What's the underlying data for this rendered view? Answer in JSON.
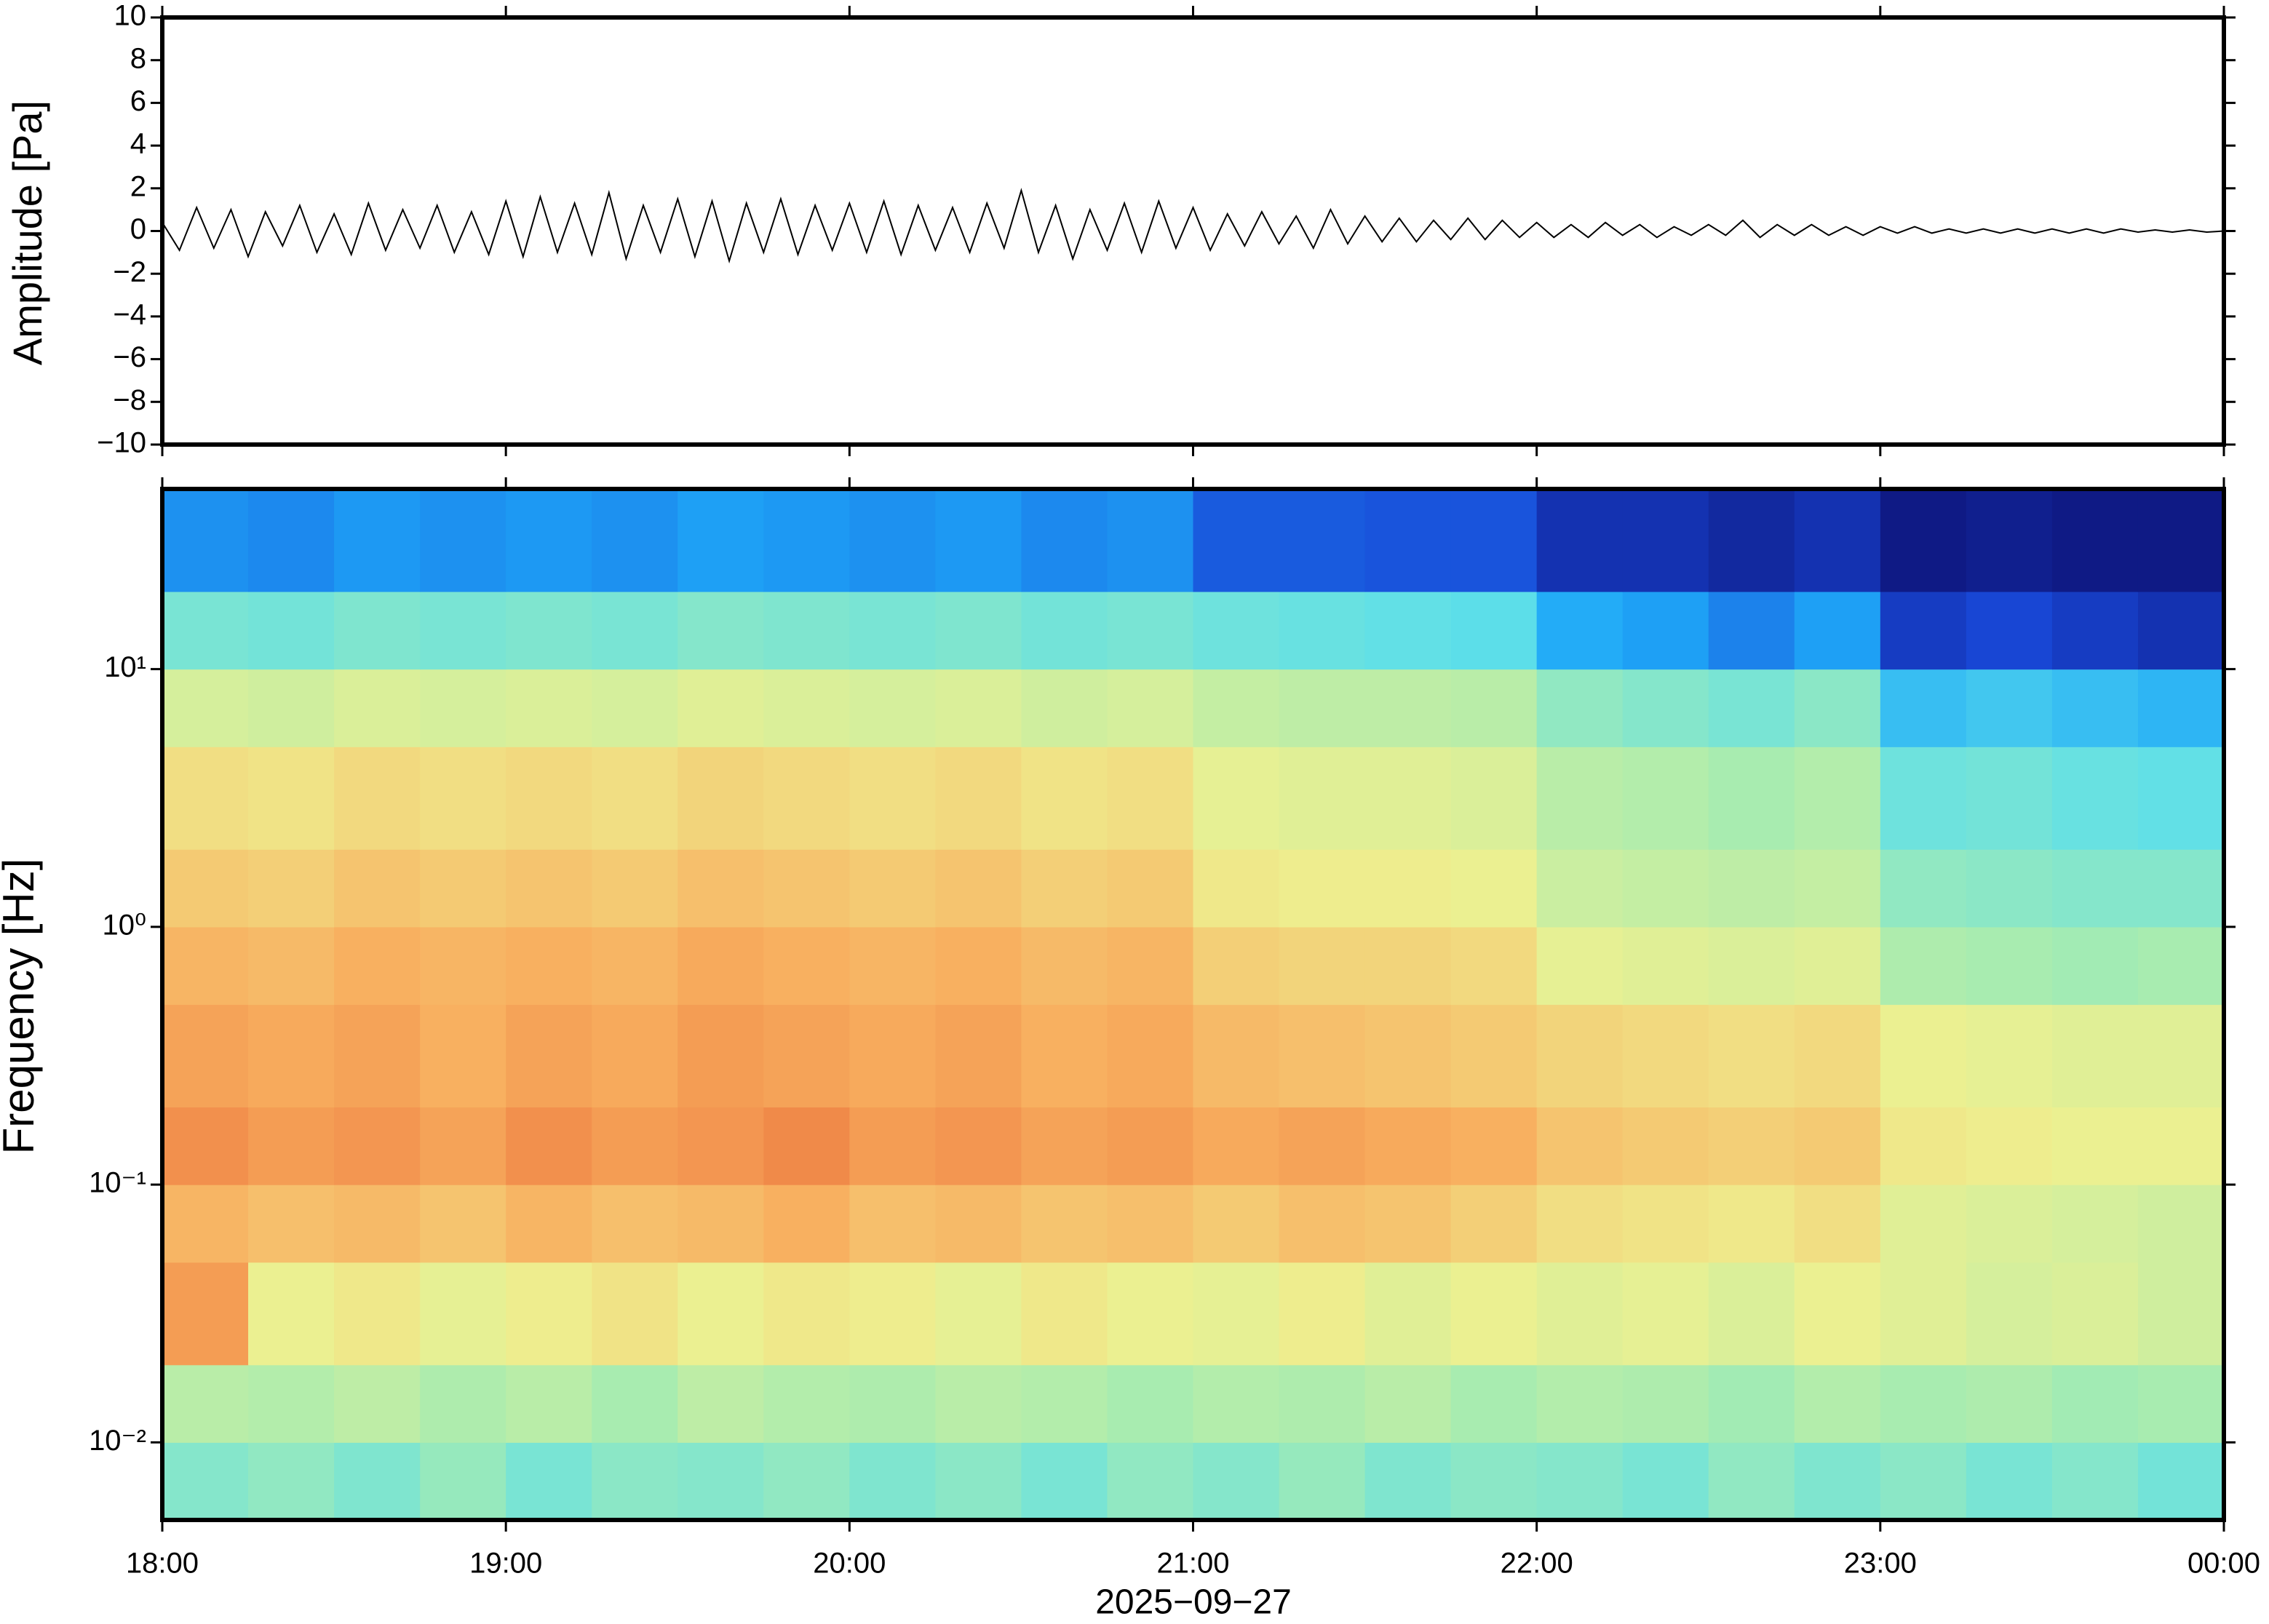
{
  "chart_data": [
    {
      "type": "line",
      "ylabel": "Amplitude [Pa]",
      "color": "#000000",
      "xlim": [
        18,
        24
      ],
      "ylim": [
        -10,
        10
      ],
      "yticks": [
        {
          "value": -10,
          "label": "−10"
        },
        {
          "value": -8,
          "label": "−8"
        },
        {
          "value": -6,
          "label": "−6"
        },
        {
          "value": -4,
          "label": "−4"
        },
        {
          "value": -2,
          "label": "−2"
        },
        0,
        2,
        4,
        6,
        8,
        10
      ],
      "x": [
        18,
        18.05,
        18.1,
        18.15,
        18.2,
        18.25,
        18.3,
        18.35,
        18.4,
        18.45,
        18.5,
        18.55,
        18.6,
        18.65,
        18.7,
        18.75,
        18.8,
        18.85,
        18.9,
        18.95,
        19,
        19.05,
        19.1,
        19.15,
        19.2,
        19.25,
        19.3,
        19.35,
        19.4,
        19.45,
        19.5,
        19.55,
        19.6,
        19.65,
        19.7,
        19.75,
        19.8,
        19.85,
        19.9,
        19.95,
        20,
        20.05,
        20.1,
        20.15,
        20.2,
        20.25,
        20.3,
        20.35,
        20.4,
        20.45,
        20.5,
        20.55,
        20.6,
        20.65,
        20.7,
        20.75,
        20.8,
        20.85,
        20.9,
        20.95,
        21,
        21.05,
        21.1,
        21.15,
        21.2,
        21.25,
        21.3,
        21.35,
        21.4,
        21.45,
        21.5,
        21.55,
        21.6,
        21.65,
        21.7,
        21.75,
        21.8,
        21.85,
        21.9,
        21.95,
        22,
        22.05,
        22.1,
        22.15,
        22.2,
        22.25,
        22.3,
        22.35,
        22.4,
        22.45,
        22.5,
        22.55,
        22.6,
        22.65,
        22.7,
        22.75,
        22.8,
        22.85,
        22.9,
        22.95,
        23,
        23.05,
        23.1,
        23.15,
        23.2,
        23.25,
        23.3,
        23.35,
        23.4,
        23.45,
        23.5,
        23.55,
        23.6,
        23.65,
        23.7,
        23.75,
        23.8,
        23.85,
        23.9,
        23.95,
        24
      ],
      "values": [
        0.4,
        -0.9,
        1.1,
        -0.8,
        1.0,
        -1.2,
        0.9,
        -0.7,
        1.2,
        -1.0,
        0.8,
        -1.1,
        1.3,
        -0.9,
        1.0,
        -0.8,
        1.2,
        -1.0,
        0.9,
        -1.1,
        1.4,
        -1.2,
        1.6,
        -1.0,
        1.3,
        -1.1,
        1.8,
        -1.3,
        1.2,
        -1.0,
        1.5,
        -1.2,
        1.4,
        -1.4,
        1.3,
        -1.0,
        1.5,
        -1.1,
        1.2,
        -0.9,
        1.3,
        -1.0,
        1.4,
        -1.1,
        1.2,
        -0.9,
        1.1,
        -1.0,
        1.3,
        -0.8,
        1.9,
        -1.0,
        1.2,
        -1.3,
        1.0,
        -0.9,
        1.3,
        -1.0,
        1.4,
        -0.8,
        1.1,
        -0.9,
        0.8,
        -0.7,
        0.9,
        -0.6,
        0.7,
        -0.8,
        1.0,
        -0.6,
        0.7,
        -0.5,
        0.6,
        -0.5,
        0.5,
        -0.4,
        0.6,
        -0.4,
        0.5,
        -0.3,
        0.4,
        -0.3,
        0.3,
        -0.3,
        0.4,
        -0.2,
        0.3,
        -0.3,
        0.2,
        -0.2,
        0.3,
        -0.2,
        0.5,
        -0.3,
        0.3,
        -0.2,
        0.3,
        -0.2,
        0.2,
        -0.2,
        0.2,
        -0.1,
        0.2,
        -0.1,
        0.1,
        -0.1,
        0.1,
        -0.1,
        0.1,
        -0.1,
        0.1,
        -0.1,
        0.1,
        -0.1,
        0.1,
        -0.05,
        0.05,
        -0.05,
        0.05,
        -0.05,
        0.0
      ]
    },
    {
      "type": "heatmap",
      "ylabel": "Frequency [Hz]",
      "xlabel": "2025−09−27",
      "log_y": true,
      "xlim": [
        18,
        24
      ],
      "ylim": [
        0.005,
        50
      ],
      "xticks": [
        {
          "value": 18,
          "label": "18:00"
        },
        {
          "value": 19,
          "label": "19:00"
        },
        {
          "value": 20,
          "label": "20:00"
        },
        {
          "value": 21,
          "label": "21:00"
        },
        {
          "value": 22,
          "label": "22:00"
        },
        {
          "value": 23,
          "label": "23:00"
        },
        {
          "value": 24,
          "label": "00:00"
        }
      ],
      "yticks": [
        {
          "value": 0.01,
          "label": "10⁻²"
        },
        {
          "value": 0.1,
          "label": "10⁻¹"
        },
        {
          "value": 1,
          "label": "10⁰"
        },
        {
          "value": 10,
          "label": "10¹"
        }
      ],
      "xbins": [
        18,
        18.25,
        18.5,
        18.75,
        19,
        19.25,
        19.5,
        19.75,
        20,
        20.25,
        20.5,
        20.75,
        21,
        21.25,
        21.5,
        21.75,
        22,
        22.25,
        22.5,
        22.75,
        23,
        23.25,
        23.5,
        23.75,
        24
      ],
      "ybins": [
        0.005,
        0.01,
        0.02,
        0.05,
        0.1,
        0.2,
        0.5,
        1,
        2,
        5,
        10,
        20,
        50
      ],
      "zlim": [
        0,
        100
      ],
      "colormap": [
        "#0c0c6b",
        "#1848d8",
        "#1ea8f8",
        "#5fe0e8",
        "#a8ecb0",
        "#eef090",
        "#f8b060",
        "#e86030",
        "#b01010"
      ],
      "values": [
        [
          44,
          46,
          43,
          47,
          42,
          45,
          44,
          46,
          43,
          45,
          42,
          46,
          44,
          47,
          43,
          45,
          44,
          42,
          46,
          43,
          45,
          42,
          44,
          41
        ],
        [
          53,
          52,
          54,
          51,
          53,
          50,
          54,
          52,
          51,
          53,
          52,
          50,
          52,
          51,
          53,
          50,
          52,
          51,
          49,
          52,
          50,
          51,
          49,
          50
        ],
        [
          78,
          62,
          64,
          61,
          63,
          65,
          62,
          64,
          63,
          61,
          64,
          62,
          61,
          63,
          60,
          62,
          60,
          61,
          59,
          62,
          60,
          58,
          59,
          57
        ],
        [
          74,
          72,
          73,
          71,
          74,
          72,
          73,
          75,
          72,
          73,
          71,
          72,
          70,
          72,
          71,
          69,
          66,
          65,
          64,
          66,
          60,
          59,
          58,
          57
        ],
        [
          80,
          78,
          79,
          77,
          80,
          78,
          79,
          81,
          78,
          79,
          77,
          78,
          76,
          77,
          76,
          75,
          71,
          70,
          69,
          70,
          64,
          63,
          62,
          62
        ],
        [
          77,
          76,
          77,
          75,
          77,
          76,
          78,
          77,
          76,
          77,
          75,
          76,
          73,
          72,
          71,
          70,
          68,
          67,
          66,
          67,
          62,
          61,
          60,
          60
        ],
        [
          74,
          73,
          75,
          74,
          75,
          74,
          76,
          75,
          74,
          75,
          73,
          74,
          69,
          68,
          68,
          67,
          61,
          60,
          59,
          60,
          51,
          50,
          49,
          50
        ],
        [
          70,
          69,
          71,
          70,
          71,
          70,
          72,
          71,
          70,
          71,
          69,
          70,
          64,
          63,
          63,
          62,
          56,
          55,
          54,
          55,
          46,
          45,
          44,
          44
        ],
        [
          66,
          65,
          67,
          66,
          67,
          66,
          68,
          67,
          66,
          67,
          65,
          66,
          61,
          60,
          60,
          59,
          53,
          52,
          50,
          52,
          40,
          41,
          39,
          38
        ],
        [
          58,
          57,
          59,
          58,
          59,
          58,
          60,
          59,
          58,
          59,
          57,
          58,
          55,
          54,
          54,
          53,
          46,
          44,
          42,
          45,
          30,
          32,
          30,
          28
        ],
        [
          42,
          41,
          43,
          42,
          43,
          42,
          44,
          43,
          42,
          43,
          41,
          42,
          40,
          39,
          38,
          37,
          26,
          24,
          20,
          24,
          10,
          12,
          10,
          8
        ],
        [
          22,
          21,
          23,
          22,
          23,
          22,
          24,
          23,
          22,
          23,
          21,
          22,
          15,
          15,
          14,
          14,
          8,
          8,
          6,
          8,
          3,
          4,
          3,
          3
        ]
      ]
    }
  ]
}
